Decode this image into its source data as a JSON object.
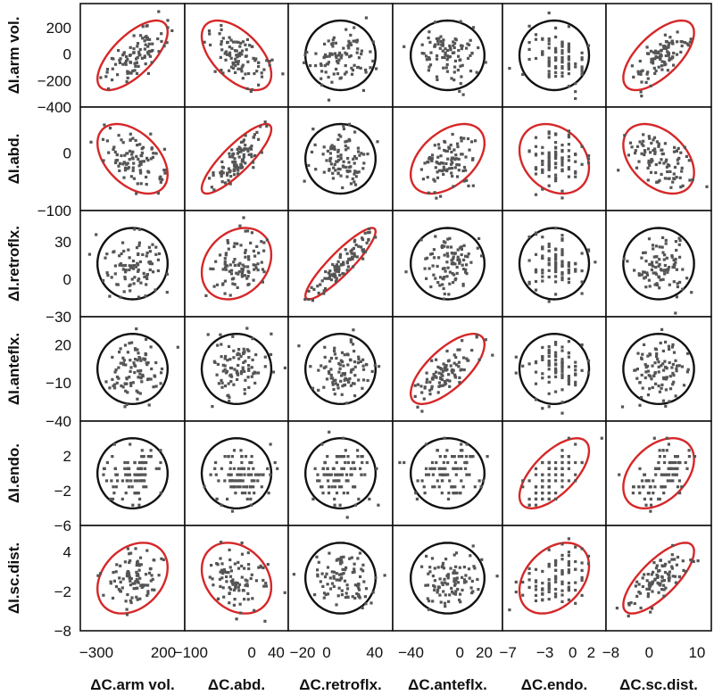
{
  "chart_data": {
    "type": "scatter",
    "subtype": "scatterplot-matrix-with-confidence-ellipses",
    "columns": [
      "ΔC.arm vol.",
      "ΔC.abd.",
      "ΔC.retroflx.",
      "ΔC.anteflx.",
      "ΔC.endo.",
      "ΔC.sc.dist."
    ],
    "rows": [
      "ΔI.arm vol.",
      "ΔI.abd.",
      "ΔI.retroflx.",
      "ΔI.anteflx.",
      "ΔI.endo.",
      "ΔI.sc.dist."
    ],
    "x_ticks": [
      {
        "labels": [
          "−300",
          "200"
        ],
        "values": [
          -300,
          200
        ],
        "range": [
          -420,
          360
        ]
      },
      {
        "labels": [
          "−100",
          "0",
          "40"
        ],
        "values": [
          -100,
          0,
          40
        ],
        "range": [
          -110,
          60
        ]
      },
      {
        "labels": [
          "−20",
          "0",
          "40"
        ],
        "values": [
          -20,
          0,
          40
        ],
        "range": [
          -32,
          55
        ]
      },
      {
        "labels": [
          "−40",
          "0",
          "20"
        ],
        "values": [
          -40,
          0,
          20
        ],
        "range": [
          -55,
          35
        ]
      },
      {
        "labels": [
          "−7",
          "−3",
          "0",
          "2"
        ],
        "values": [
          -7,
          -3,
          0,
          2
        ],
        "range": [
          -7.6,
          3.6
        ]
      },
      {
        "labels": [
          "−8",
          "0",
          "10"
        ],
        "values": [
          -8,
          0,
          10
        ],
        "range": [
          -9,
          13
        ]
      }
    ],
    "y_ticks": [
      {
        "labels": [
          "200",
          "0",
          "−200",
          "−400"
        ],
        "values": [
          200,
          0,
          -200,
          -400
        ],
        "range": [
          -400,
          380
        ]
      },
      {
        "labels": [
          "0",
          "−100"
        ],
        "values": [
          0,
          -100
        ],
        "range": [
          -100,
          80
        ]
      },
      {
        "labels": [
          "30",
          "0",
          "−30"
        ],
        "values": [
          30,
          0,
          -30
        ],
        "range": [
          -30,
          55
        ]
      },
      {
        "labels": [
          "20",
          "−10",
          "−40"
        ],
        "values": [
          20,
          -10,
          -40
        ],
        "range": [
          -40,
          42
        ]
      },
      {
        "labels": [
          "2",
          "−2",
          "−6"
        ],
        "values": [
          2,
          -2,
          -6
        ],
        "range": [
          -6,
          6
        ]
      },
      {
        "labels": [
          "4",
          "−2",
          "−8"
        ],
        "values": [
          4,
          -2,
          -8
        ],
        "range": [
          -8,
          8
        ]
      }
    ],
    "ellipses": [
      [
        {
          "color": "#d62728",
          "corr": 0.68
        },
        {
          "color": "#d62728",
          "corr": -0.55
        },
        {
          "color": "#111111",
          "corr": 0
        },
        {
          "color": "#111111",
          "corr": 0
        },
        {
          "color": "#111111",
          "corr": 0
        },
        {
          "color": "#d62728",
          "corr": 0.65
        }
      ],
      [
        {
          "color": "#d62728",
          "corr": -0.45
        },
        {
          "color": "#d62728",
          "corr": 0.85
        },
        {
          "color": "#111111",
          "corr": 0
        },
        {
          "color": "#d62728",
          "corr": 0.45
        },
        {
          "color": "#d62728",
          "corr": -0.25
        },
        {
          "color": "#d62728",
          "corr": -0.4
        }
      ],
      [
        {
          "color": "#111111",
          "corr": 0
        },
        {
          "color": "#d62728",
          "corr": 0.25
        },
        {
          "color": "#d62728",
          "corr": 0.9
        },
        {
          "color": "#111111",
          "corr": 0
        },
        {
          "color": "#111111",
          "corr": 0
        },
        {
          "color": "#111111",
          "corr": 0
        }
      ],
      [
        {
          "color": "#111111",
          "corr": 0
        },
        {
          "color": "#111111",
          "corr": 0
        },
        {
          "color": "#111111",
          "corr": 0
        },
        {
          "color": "#d62728",
          "corr": 0.7
        },
        {
          "color": "#111111",
          "corr": 0
        },
        {
          "color": "#111111",
          "corr": 0
        }
      ],
      [
        {
          "color": "#111111",
          "corr": 0
        },
        {
          "color": "#111111",
          "corr": 0
        },
        {
          "color": "#111111",
          "corr": 0
        },
        {
          "color": "#111111",
          "corr": 0
        },
        {
          "color": "#d62728",
          "corr": 0.65
        },
        {
          "color": "#d62728",
          "corr": 0.4
        }
      ],
      [
        {
          "color": "#d62728",
          "corr": 0.3
        },
        {
          "color": "#d62728",
          "corr": -0.25
        },
        {
          "color": "#111111",
          "corr": 0
        },
        {
          "color": "#111111",
          "corr": 0
        },
        {
          "color": "#d62728",
          "corr": 0.35
        },
        {
          "color": "#d62728",
          "corr": 0.75
        }
      ]
    ],
    "grid": false,
    "legend": "none"
  }
}
